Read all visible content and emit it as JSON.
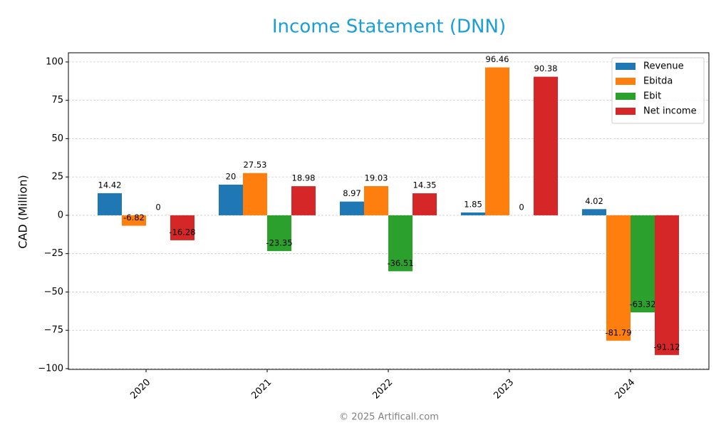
{
  "chart_data": {
    "type": "bar",
    "title": "Income Statement (DNN)",
    "y_label": "CAD (Million)",
    "footer": "© 2025 Artificall.com",
    "categories": [
      "2020",
      "2021",
      "2022",
      "2023",
      "2024"
    ],
    "series": [
      {
        "name": "Revenue",
        "color": "#1f77b4",
        "values": [
          14.42,
          20,
          8.97,
          1.85,
          4.02
        ]
      },
      {
        "name": "Ebitda",
        "color": "#ff7f0e",
        "values": [
          -6.82,
          27.53,
          19.03,
          96.46,
          -81.79
        ]
      },
      {
        "name": "Ebit",
        "color": "#2ca02c",
        "values": [
          0,
          -23.35,
          -36.51,
          0,
          -63.32
        ]
      },
      {
        "name": "Net income",
        "color": "#d62728",
        "values": [
          -16.28,
          18.98,
          14.35,
          90.38,
          -91.12
        ]
      }
    ],
    "ylim": [
      -100.5,
      106
    ],
    "yticks": [
      {
        "value": -100,
        "label": "−100"
      },
      {
        "value": -75,
        "label": "−75"
      },
      {
        "value": -50,
        "label": "−50"
      },
      {
        "value": -25,
        "label": "−25"
      },
      0,
      25,
      50,
      75,
      100
    ],
    "grid": true,
    "legend": "upper right"
  }
}
